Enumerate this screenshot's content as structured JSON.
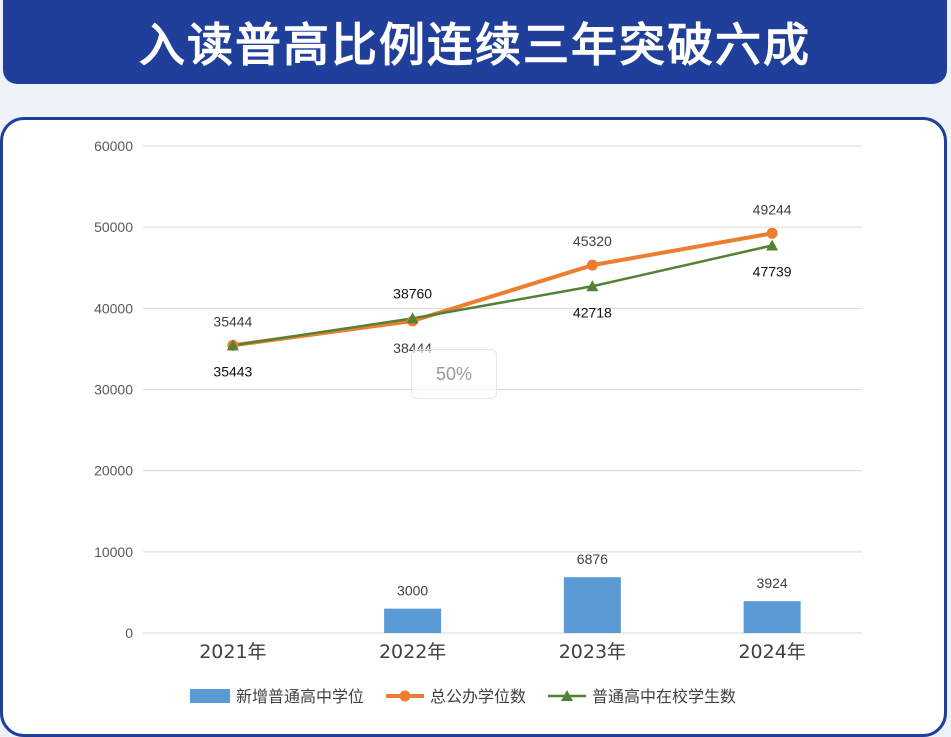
{
  "header": {
    "title": "入读普高比例连续三年突破六成"
  },
  "overlay": {
    "zoom_label": "50%"
  },
  "colors": {
    "bar": "#5b9bd5",
    "total": "#ed7d31",
    "enrolled": "#548235",
    "banner": "#1f3f9a"
  },
  "chart_data": {
    "type": "bar",
    "categories": [
      "2021年",
      "2022年",
      "2023年",
      "2024年"
    ],
    "ylim": [
      0,
      60000
    ],
    "yticks": [
      0,
      10000,
      20000,
      30000,
      40000,
      50000,
      60000
    ],
    "grid": true,
    "legend_position": "bottom",
    "series": [
      {
        "name": "新增普通高中学位",
        "kind": "bar",
        "values": [
          0,
          3000,
          6876,
          3924
        ],
        "labels": [
          "",
          "3000",
          "6876",
          "3924"
        ]
      },
      {
        "name": "总公办学位数",
        "kind": "line",
        "marker": "circle",
        "values": [
          35444,
          38444,
          45320,
          49244
        ]
      },
      {
        "name": "普通高中在校学生数",
        "kind": "line",
        "marker": "triangle",
        "values": [
          35443,
          38760,
          42718,
          47739
        ]
      }
    ]
  }
}
